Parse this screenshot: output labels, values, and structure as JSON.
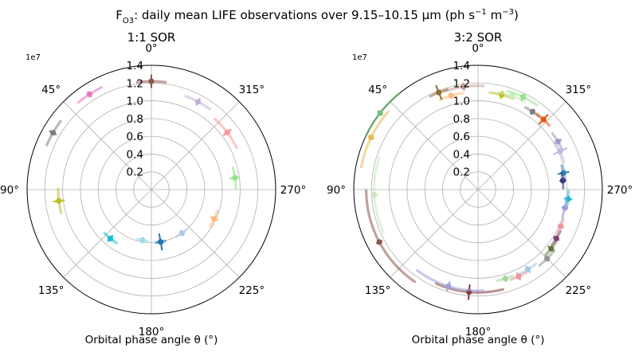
{
  "chart_data": {
    "suptitle": {
      "prefix": "F",
      "subscript": "O3",
      "text": ": daily mean LIFE observations over 9.15–10.15 µm (ph s",
      "exp1": "−1",
      "mid": " m",
      "exp2": "−3",
      "close": ")"
    },
    "panels": [
      {
        "type": "polar-scatter",
        "title": "1:1 SOR",
        "xlabel": "Orbital phase angle θ (°)",
        "scale_label": "1e7",
        "rlim": [
          0,
          1.4
        ],
        "r_ticks": [
          0.2,
          0.4,
          0.6,
          0.8,
          1.0,
          1.2,
          1.4
        ],
        "r_tick_labels": [
          "0.2",
          "0.4",
          "0.6",
          "0.8",
          "1.0",
          "1.2",
          "1.4"
        ],
        "theta_ticks": [
          0,
          45,
          90,
          135,
          180,
          225,
          270,
          315
        ],
        "theta_tick_labels": [
          "0°",
          "45°",
          "90°",
          "135°",
          "180°",
          "225°",
          "270°",
          "315°"
        ],
        "points": [
          {
            "theta": 0,
            "r": 1.22,
            "color": "#8c564b",
            "arc": 15,
            "dr": 0.07
          },
          {
            "theta": 332,
            "r": 1.12,
            "color": "#c5b0d5",
            "arc": 16,
            "dr": 0.04
          },
          {
            "theta": 307,
            "r": 1.07,
            "color": "#ff9896",
            "arc": 22,
            "dr": 0.05
          },
          {
            "theta": 278,
            "r": 0.95,
            "color": "#98df8a",
            "arc": 14,
            "dr": 0.05
          },
          {
            "theta": 245,
            "r": 0.78,
            "color": "#ffbb78",
            "arc": 14,
            "dr": 0.04
          },
          {
            "theta": 215,
            "r": 0.6,
            "color": "#aec7e8",
            "arc": 14,
            "dr": 0.03
          },
          {
            "theta": 190,
            "r": 0.6,
            "color": "#1f77b4",
            "arc": 10,
            "dr": 0.09
          },
          {
            "theta": 170,
            "r": 0.58,
            "color": "#9edae5",
            "arc": 12,
            "dr": 0.03
          },
          {
            "theta": 140,
            "r": 0.72,
            "color": "#17becf",
            "arc": 14,
            "dr": 0.04
          },
          {
            "theta": 97,
            "r": 1.05,
            "color": "#bcbd22",
            "arc": 15,
            "dr": 0.06
          },
          {
            "theta": 60,
            "r": 1.28,
            "color": "#7f7f7f",
            "arc": 14,
            "dr": 0.04
          },
          {
            "theta": 33,
            "r": 1.28,
            "color": "#e377c2",
            "arc": 14,
            "dr": 0.03
          }
        ]
      },
      {
        "type": "polar-scatter",
        "title": "3:2 SOR",
        "xlabel": "Orbital phase angle θ (°)",
        "scale_label": "1e7",
        "rlim": [
          0,
          1.4
        ],
        "r_ticks": [
          0.2,
          0.4,
          0.6,
          0.8,
          1.0,
          1.2,
          1.4
        ],
        "r_tick_labels": [
          "0.2",
          "0.4",
          "0.6",
          "0.8",
          "1.0",
          "1.2",
          "1.4"
        ],
        "theta_ticks": [
          0,
          45,
          90,
          135,
          180,
          225,
          270,
          315
        ],
        "theta_tick_labels": [
          "0°",
          "45°",
          "90°",
          "135°",
          "180°",
          "225°",
          "270°",
          "315°"
        ],
        "points": [
          {
            "theta": 8,
            "r": 1.17,
            "color": "#c49c94",
            "arc": 22,
            "dr": 0.04
          },
          {
            "theta": 16,
            "r": 1.1,
            "color": "#ffbb78",
            "arc": 14,
            "dr": 0.03
          },
          {
            "theta": 22,
            "r": 1.18,
            "color": "#8c6d31",
            "arc": 10,
            "dr": 0.08
          },
          {
            "theta": 346,
            "r": 1.1,
            "color": "#bcbd22",
            "arc": 14,
            "dr": 0.04
          },
          {
            "theta": 340,
            "r": 1.12,
            "color": "#c7e9c0",
            "arc": 16,
            "dr": 0.03
          },
          {
            "theta": 334,
            "r": 1.16,
            "color": "#98df8a",
            "arc": 18,
            "dr": 0.04
          },
          {
            "theta": 325,
            "r": 1.07,
            "color": "#7f7f7f",
            "arc": 10,
            "dr": 0.03
          },
          {
            "theta": 317,
            "r": 1.08,
            "color": "#e6550d",
            "arc": 10,
            "dr": 0.07
          },
          {
            "theta": 301,
            "r": 1.05,
            "color": "#9e9ac8",
            "arc": 12,
            "dr": 0.04
          },
          {
            "theta": 295,
            "r": 1.02,
            "color": "#bcbddc",
            "arc": 14,
            "dr": 0.08
          },
          {
            "theta": 281,
            "r": 0.98,
            "color": "#3182bd",
            "arc": 10,
            "dr": 0.06
          },
          {
            "theta": 276,
            "r": 0.96,
            "color": "#393b79",
            "arc": 10,
            "dr": 0.03
          },
          {
            "theta": 264,
            "r": 1.02,
            "color": "#17becf",
            "arc": 10,
            "dr": 0.04
          },
          {
            "theta": 258,
            "r": 1.0,
            "color": "#9c9ede",
            "arc": 12,
            "dr": 0.03
          },
          {
            "theta": 246,
            "r": 1.02,
            "color": "#e7969c",
            "arc": 10,
            "dr": 0.03
          },
          {
            "theta": 238,
            "r": 1.04,
            "color": "#7b4173",
            "arc": 10,
            "dr": 0.03
          },
          {
            "theta": 231,
            "r": 1.06,
            "color": "#637939",
            "arc": 10,
            "dr": 0.04
          },
          {
            "theta": 225,
            "r": 1.1,
            "color": "#969696",
            "arc": 12,
            "dr": 0.03
          },
          {
            "theta": 212,
            "r": 1.06,
            "color": "#9ecae1",
            "arc": 12,
            "dr": 0.04
          },
          {
            "theta": 205,
            "r": 1.08,
            "color": "#e7969c",
            "arc": 10,
            "dr": 0.04
          },
          {
            "theta": 197,
            "r": 1.05,
            "color": "#a1d99b",
            "arc": 10,
            "dr": 0.03
          },
          {
            "theta": 175,
            "r": 1.16,
            "color": "#843c39",
            "arc": 38,
            "dr": 0.08
          },
          {
            "theta": 163,
            "r": 1.14,
            "color": "#9c9ede",
            "arc": 40,
            "dr": 0.05
          },
          {
            "theta": 118,
            "r": 1.26,
            "color": "#8c564b",
            "arc": 55,
            "dr": 0.03
          },
          {
            "theta": 93,
            "r": 1.17,
            "color": "#c7e9c0",
            "arc": 42,
            "dr": 0.03
          },
          {
            "theta": 64,
            "r": 1.34,
            "color": "#e7ba52",
            "arc": 30,
            "dr": 0.03
          },
          {
            "theta": 52,
            "r": 1.4,
            "color": "#74c476",
            "arc": 25,
            "dr": 0.03
          }
        ]
      }
    ]
  }
}
